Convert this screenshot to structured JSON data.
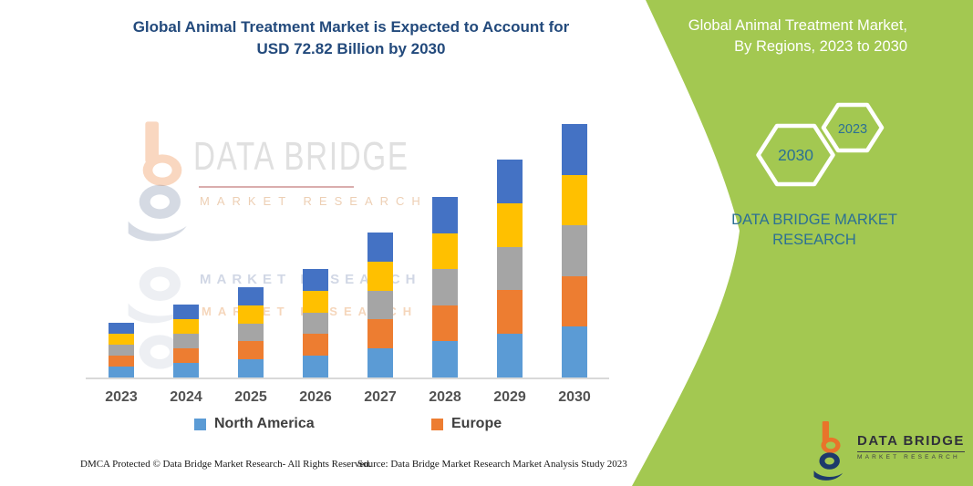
{
  "title": {
    "line1": "Global Animal Treatment Market is Expected to Account for",
    "line2": "USD 72.82 Billion by 2030"
  },
  "panel": {
    "header_line1": "Global Animal Treatment Market,",
    "header_line2": "By Regions, 2023 to 2030",
    "hexagons": [
      {
        "label": "2030"
      },
      {
        "label": "2023"
      }
    ],
    "brand_line1": "DATA BRIDGE MARKET",
    "brand_line2": "RESEARCH",
    "colors": {
      "panel_green": "#A3C851",
      "hexagon_outline": "#FFFFFF",
      "hexagon_number": "#2C7094",
      "brand_text": "#2C7094"
    }
  },
  "watermark": {
    "name": "DATA BRIDGE",
    "subtitle": "MARKET RESEARCH",
    "ghost_row1": "MARKET RESEARCH",
    "ghost_row2": "MARKET RESEARCH"
  },
  "footer_logo": {
    "name": "DATA BRIDGE",
    "subtitle": "MARKET RESEARCH"
  },
  "legend": [
    {
      "label": "North America",
      "color": "#5B9BD5"
    },
    {
      "label": "Europe",
      "color": "#ED7D31"
    }
  ],
  "footer": {
    "left": "DMCA Protected © Data Bridge Market Research-  All Rights Reserved.",
    "right": "Source: Data Bridge Market Research  Market Analysis Study 2023"
  },
  "chart_data": {
    "type": "bar",
    "stacked": true,
    "unit": "USD Billion",
    "title": "Global Animal Treatment Market is Expected to Account for USD 72.82 Billion by 2030",
    "xlabel": "",
    "ylabel": "",
    "y_axis": "hidden",
    "grid": false,
    "legend_position": "bottom",
    "legend_visible": [
      "North America",
      "Europe"
    ],
    "categories": [
      "2023",
      "2024",
      "2025",
      "2026",
      "2027",
      "2028",
      "2029",
      "2030"
    ],
    "totals": [
      15.7,
      20.95,
      25.95,
      31.15,
      41.65,
      51.85,
      62.6,
      72.8
    ],
    "series": [
      {
        "name": "North America",
        "color": "#5B9BD5",
        "values": [
          3.14,
          4.19,
          5.19,
          6.23,
          8.33,
          10.37,
          12.52,
          14.56
        ]
      },
      {
        "name": "Europe",
        "color": "#ED7D31",
        "values": [
          3.14,
          4.19,
          5.19,
          6.23,
          8.33,
          10.37,
          12.52,
          14.56
        ]
      },
      {
        "name": "unlabeled-gray",
        "color": "#A5A5A5",
        "values": [
          3.14,
          4.19,
          5.19,
          6.23,
          8.33,
          10.37,
          12.52,
          14.56
        ]
      },
      {
        "name": "unlabeled-yellow",
        "color": "#FFC000",
        "values": [
          3.14,
          4.19,
          5.19,
          6.23,
          8.33,
          10.37,
          12.52,
          14.56
        ]
      },
      {
        "name": "unlabeled-darkblue",
        "color": "#4472C4",
        "values": [
          3.14,
          4.19,
          5.19,
          6.23,
          8.33,
          10.37,
          12.52,
          14.56
        ]
      }
    ]
  }
}
